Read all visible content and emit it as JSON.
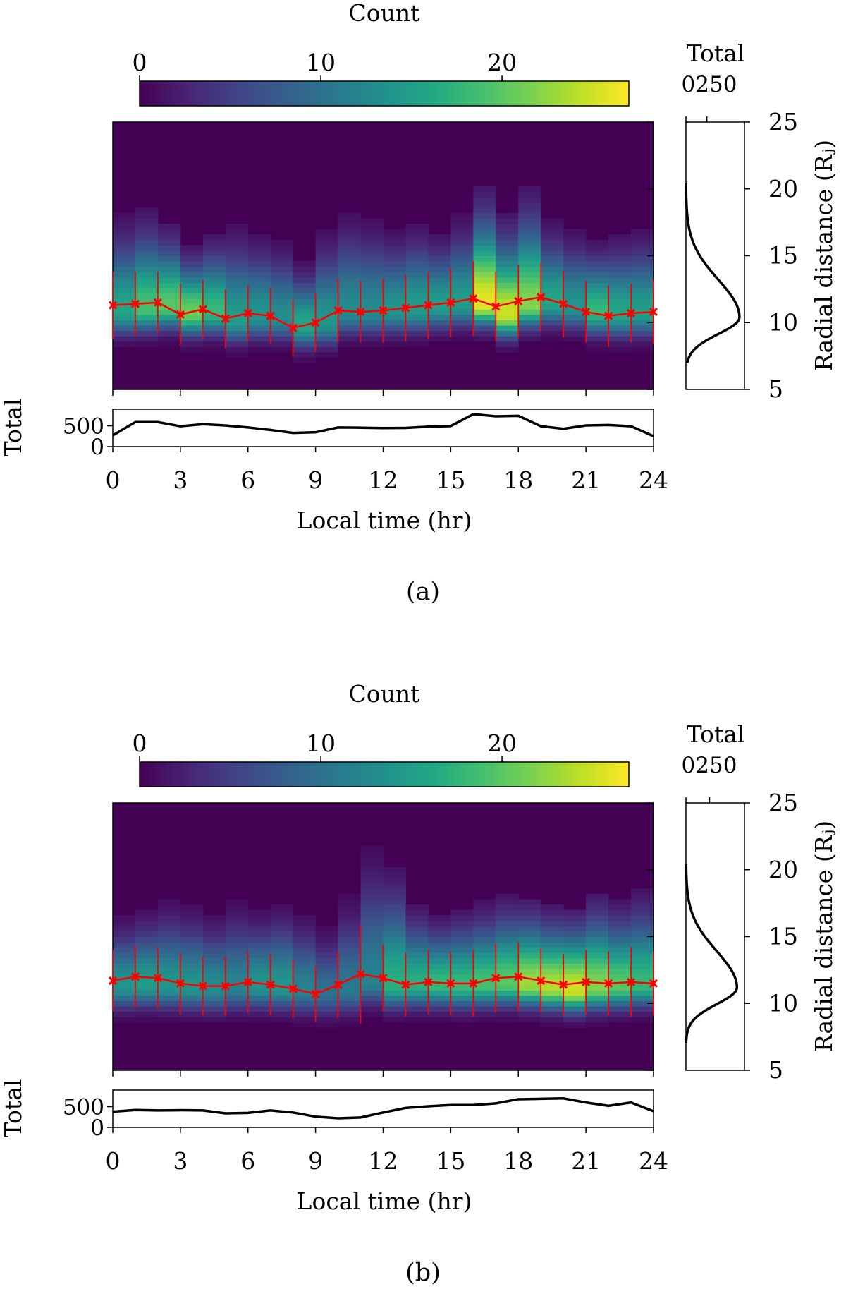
{
  "panels": [
    {
      "caption": "(a)",
      "colorbar": {
        "label": "Count",
        "ticks": [
          0,
          10,
          20
        ],
        "range": [
          0,
          27
        ]
      },
      "chart_data": [
        {
          "type": "heatmap",
          "xlabel": "",
          "ylabel": "",
          "xlim": [
            0,
            24
          ],
          "ylim": [
            5,
            25
          ],
          "x_bin_centers": [
            0.5,
            1.5,
            2.5,
            3.5,
            4.5,
            5.5,
            6.5,
            7.5,
            8.5,
            9.5,
            10.5,
            11.5,
            12.5,
            13.5,
            14.5,
            15.5,
            16.5,
            17.5,
            18.5,
            19.5,
            20.5,
            21.5,
            22.5,
            23.5
          ],
          "peak_radius": [
            10.8,
            11,
            11.2,
            10.7,
            10.8,
            10.2,
            10.5,
            10.4,
            9.8,
            10,
            10.8,
            10.8,
            10.9,
            11,
            11.2,
            11.4,
            11.4,
            10.6,
            11.3,
            11.5,
            11.2,
            10.8,
            10.6,
            10.7
          ],
          "outer_extent": [
            18,
            18.5,
            17.5,
            15.8,
            16.8,
            17.3,
            16.8,
            16.2,
            14.6,
            17,
            18.3,
            17.8,
            17,
            17.5,
            16.8,
            18,
            20,
            18,
            20,
            17.6,
            17,
            16.2,
            16.7,
            17.1
          ],
          "peak_count": [
            16,
            19,
            20,
            21,
            18,
            15,
            14,
            13,
            16,
            14,
            13,
            13,
            14,
            15,
            15,
            15,
            26,
            25,
            22,
            16,
            14,
            18,
            16,
            15
          ],
          "profile": {
            "x": [
              0,
              1,
              2,
              3,
              4,
              5,
              6,
              7,
              8,
              9,
              10,
              11,
              12,
              13,
              14,
              15,
              16,
              17,
              18,
              19,
              20,
              21,
              22,
              23,
              24
            ],
            "y": [
              11.3,
              11.4,
              11.5,
              10.6,
              11,
              10.3,
              10.7,
              10.5,
              9.6,
              10,
              10.9,
              10.8,
              10.9,
              11.1,
              11.3,
              11.5,
              11.8,
              11.2,
              11.6,
              11.9,
              11.4,
              10.8,
              10.5,
              10.7,
              10.8
            ],
            "err": [
              2.5,
              2.4,
              2.3,
              2.3,
              2.2,
              2.2,
              2.1,
              2.1,
              2.1,
              2.2,
              2.4,
              2.3,
              2.4,
              2.5,
              2.5,
              2.6,
              2.8,
              2.6,
              2.7,
              2.6,
              2.5,
              2.3,
              2.3,
              2.2,
              2.4
            ],
            "color": "#ff0000"
          }
        },
        {
          "type": "line",
          "ylabel": "Total",
          "xlabel": "Local time (hr)",
          "xlim": [
            0,
            24
          ],
          "ylim": [
            0,
            900
          ],
          "x_ticks": [
            0,
            3,
            6,
            9,
            12,
            15,
            18,
            21,
            24
          ],
          "y_ticks": [
            0,
            500
          ],
          "x": [
            0,
            1,
            2,
            3,
            4,
            5,
            6,
            7,
            8,
            9,
            10,
            11,
            12,
            13,
            14,
            15,
            16,
            17,
            18,
            19,
            20,
            21,
            22,
            23,
            24
          ],
          "values": [
            270,
            590,
            590,
            490,
            540,
            510,
            460,
            400,
            330,
            345,
            460,
            455,
            445,
            450,
            480,
            495,
            780,
            730,
            740,
            490,
            430,
            510,
            520,
            490,
            250
          ]
        },
        {
          "type": "line",
          "orientation": "vertical",
          "title": "Total",
          "ylabel": "Radial distance (Rⱼ)",
          "x_ticks": [
            0,
            250
          ],
          "x_tick_text": "0250",
          "x_range": [
            0,
            700
          ],
          "y_ticks": [
            5,
            10,
            15,
            20,
            25
          ],
          "ylim": [
            5,
            25
          ],
          "profile": {
            "peak_r": 10.4,
            "peak_total": 640,
            "sigma_in": 1.25,
            "sigma_out": 2.8
          }
        }
      ]
    },
    {
      "caption": "(b)",
      "colorbar": {
        "label": "Count",
        "ticks": [
          0,
          10,
          20
        ],
        "range": [
          0,
          27
        ]
      },
      "chart_data": [
        {
          "type": "heatmap",
          "xlabel": "",
          "ylabel": "",
          "xlim": [
            0,
            24
          ],
          "ylim": [
            5,
            25
          ],
          "x_bin_centers": [
            0.5,
            1.5,
            2.5,
            3.5,
            4.5,
            5.5,
            6.5,
            7.5,
            8.5,
            9.5,
            10.5,
            11.5,
            12.5,
            13.5,
            14.5,
            15.5,
            16.5,
            17.5,
            18.5,
            19.5,
            20.5,
            21.5,
            22.5,
            23.5
          ],
          "peak_radius": [
            11.3,
            11.4,
            11.3,
            11.2,
            11.1,
            11.2,
            11.3,
            11.2,
            11,
            10.8,
            11,
            11.6,
            11.3,
            11.4,
            11.4,
            11.3,
            11.4,
            11.5,
            11.4,
            11.2,
            11,
            11.2,
            11.3,
            11.4
          ],
          "outer_extent": [
            16.5,
            17,
            17.7,
            17.3,
            16.8,
            17.7,
            17,
            17.5,
            16.8,
            15.8,
            18,
            21.6,
            20.3,
            17.5,
            16.7,
            17.2,
            17.6,
            18.2,
            17.9,
            17.3,
            17.2,
            18.3,
            17.8,
            18.6
          ],
          "peak_count": [
            14,
            15,
            14,
            14,
            13,
            12,
            14,
            14,
            12,
            10,
            11,
            12,
            17,
            17,
            18,
            18,
            19,
            20,
            23,
            24,
            25,
            22,
            20,
            18
          ],
          "profile": {
            "x": [
              0,
              1,
              2,
              3,
              4,
              5,
              6,
              7,
              8,
              9,
              10,
              11,
              12,
              13,
              14,
              15,
              16,
              17,
              18,
              19,
              20,
              21,
              22,
              23,
              24
            ],
            "y": [
              11.7,
              12,
              11.9,
              11.5,
              11.3,
              11.3,
              11.6,
              11.4,
              11.1,
              10.7,
              11.4,
              12.2,
              11.9,
              11.4,
              11.6,
              11.5,
              11.5,
              11.9,
              12,
              11.7,
              11.4,
              11.6,
              11.5,
              11.6,
              11.5
            ],
            "err": [
              2.3,
              2.3,
              2.3,
              2.3,
              2.2,
              2.2,
              2.3,
              2.3,
              2.2,
              2.1,
              2.5,
              3.7,
              2.5,
              2.4,
              2.4,
              2.4,
              2.5,
              2.6,
              2.6,
              2.4,
              2.3,
              2.4,
              2.4,
              2.6,
              2.4
            ],
            "color": "#ff0000"
          }
        },
        {
          "type": "line",
          "ylabel": "Total",
          "xlabel": "Local time (hr)",
          "xlim": [
            0,
            24
          ],
          "ylim": [
            0,
            900
          ],
          "x_ticks": [
            0,
            3,
            6,
            9,
            12,
            15,
            18,
            21,
            24
          ],
          "y_ticks": [
            0,
            500
          ],
          "x": [
            0,
            1,
            2,
            3,
            4,
            5,
            6,
            7,
            8,
            9,
            10,
            11,
            12,
            13,
            14,
            15,
            16,
            17,
            18,
            19,
            20,
            21,
            22,
            23,
            24
          ],
          "values": [
            380,
            420,
            410,
            415,
            410,
            340,
            350,
            410,
            360,
            260,
            220,
            240,
            360,
            470,
            510,
            540,
            540,
            580,
            680,
            690,
            700,
            600,
            520,
            600,
            390
          ]
        },
        {
          "type": "line",
          "orientation": "vertical",
          "title": "Total",
          "ylabel": "Radial distance (Rⱼ)",
          "x_ticks": [
            0,
            250
          ],
          "x_tick_text": "0250",
          "x_range": [
            0,
            620
          ],
          "y_ticks": [
            5,
            10,
            15,
            20,
            25
          ],
          "ylim": [
            5,
            25
          ],
          "profile": {
            "peak_r": 11.2,
            "peak_total": 540,
            "sigma_in": 1.25,
            "sigma_out": 2.7
          }
        }
      ]
    }
  ]
}
